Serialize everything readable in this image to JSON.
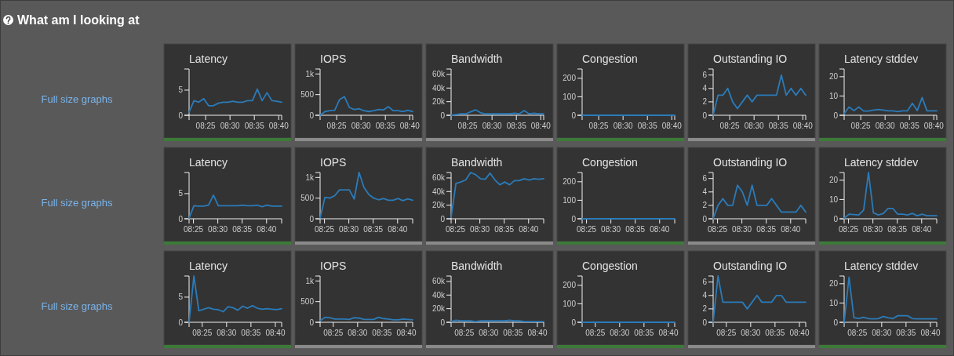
{
  "chart_data": [
    {
      "type": "other",
      "title": "What am I looking at"
    },
    {
      "type": "other",
      "annotations": [
        "Full size graphs"
      ]
    },
    {
      "type": "line",
      "title": "Latency",
      "x": [
        8.36,
        8.3767,
        8.3933,
        8.41,
        8.4267,
        8.4433,
        8.46,
        8.4767,
        8.4933,
        8.51,
        8.5267,
        8.5433,
        8.56,
        8.5767,
        8.5933,
        8.61,
        8.6267,
        8.6433,
        8.66,
        8.6767
      ],
      "values": [
        0.6,
        2.9,
        2.6,
        3.3,
        1.9,
        1.9,
        2.4,
        2.6,
        2.6,
        2.8,
        2.6,
        2.6,
        2.9,
        2.9,
        5.2,
        2.9,
        4.5,
        2.9,
        2.8,
        2.6
      ],
      "color": "#2b7bb9",
      "xlim": [
        8.36,
        8.6767
      ],
      "xticks": [
        {
          "value": 8.4167,
          "label": "08:25"
        },
        {
          "value": 8.5,
          "label": "08:30"
        },
        {
          "value": 8.5833,
          "label": "08:35"
        },
        {
          "value": 8.6667,
          "label": "08:40"
        }
      ],
      "ylim": [
        0,
        9.2
      ],
      "yticks": [
        0,
        5
      ]
    },
    {
      "type": "line",
      "title": "IOPS",
      "x": [
        8.36,
        8.3767,
        8.3933,
        8.41,
        8.4267,
        8.4433,
        8.46,
        8.4767,
        8.4933,
        8.51,
        8.5267,
        8.5433,
        8.56,
        8.5767,
        8.5933,
        8.61,
        8.6267,
        8.6433,
        8.66,
        8.6767
      ],
      "values": [
        0,
        90,
        110,
        120,
        380,
        450,
        190,
        140,
        160,
        110,
        90,
        110,
        140,
        130,
        210,
        110,
        110,
        90,
        120,
        90
      ],
      "color": "#2b7bb9",
      "xlim": [
        8.36,
        8.6767
      ],
      "xticks": [
        {
          "value": 8.4167,
          "label": "08:25"
        },
        {
          "value": 8.5,
          "label": "08:30"
        },
        {
          "value": 8.5833,
          "label": "08:35"
        },
        {
          "value": 8.6667,
          "label": "08:40"
        }
      ],
      "ylim": [
        0,
        1120
      ],
      "yticks": [
        0,
        500,
        {
          "value": 1000,
          "label": "1k"
        }
      ]
    },
    {
      "type": "line",
      "title": "Bandwidth",
      "x": [
        8.36,
        8.3767,
        8.3933,
        8.41,
        8.4267,
        8.4433,
        8.46,
        8.4767,
        8.4933,
        8.51,
        8.5267,
        8.5433,
        8.56,
        8.5767,
        8.5933,
        8.61,
        8.6267,
        8.6433,
        8.66,
        8.6767
      ],
      "values": [
        0,
        1000,
        2000,
        2000,
        5000,
        8000,
        4000,
        2000,
        2000,
        2000,
        2000,
        2000,
        2000,
        3000,
        2000,
        7000,
        2000,
        3000,
        2000,
        2000
      ],
      "color": "#2b7bb9",
      "xlim": [
        8.36,
        8.6767
      ],
      "xticks": [
        {
          "value": 8.4167,
          "label": "08:25"
        },
        {
          "value": 8.5,
          "label": "08:30"
        },
        {
          "value": 8.5833,
          "label": "08:35"
        },
        {
          "value": 8.6667,
          "label": "08:40"
        }
      ],
      "ylim": [
        0,
        68000
      ],
      "yticks": [
        0,
        {
          "value": 20000,
          "label": "20k"
        },
        {
          "value": 40000,
          "label": "40k"
        },
        {
          "value": 60000,
          "label": "60k"
        }
      ]
    },
    {
      "type": "line",
      "title": "Congestion",
      "x": [
        8.36,
        8.3767,
        8.3933,
        8.41,
        8.4267,
        8.4433,
        8.46,
        8.4767,
        8.4933,
        8.51,
        8.5267,
        8.5433,
        8.56,
        8.5767,
        8.5933,
        8.61,
        8.6267,
        8.6433,
        8.66,
        8.6767
      ],
      "values": [
        0,
        0,
        0,
        0,
        0,
        0,
        0,
        0,
        0,
        0,
        0,
        0,
        0,
        0,
        0,
        0,
        0,
        0,
        0,
        0
      ],
      "color": "#2b7bb9",
      "xlim": [
        8.36,
        8.6767
      ],
      "xticks": [
        {
          "value": 8.4167,
          "label": "08:25"
        },
        {
          "value": 8.5,
          "label": "08:30"
        },
        {
          "value": 8.5833,
          "label": "08:35"
        },
        {
          "value": 8.6667,
          "label": "08:40"
        }
      ],
      "ylim": [
        0,
        250
      ],
      "yticks": [
        0,
        100,
        200
      ]
    },
    {
      "type": "line",
      "title": "Outstanding IO",
      "x": [
        8.36,
        8.3767,
        8.3933,
        8.41,
        8.4267,
        8.4433,
        8.46,
        8.4767,
        8.4933,
        8.51,
        8.5267,
        8.5433,
        8.56,
        8.5767,
        8.5933,
        8.61,
        8.6267,
        8.6433,
        8.66,
        8.6767
      ],
      "values": [
        0,
        3,
        3,
        4,
        2,
        1,
        2,
        3,
        2,
        3,
        3,
        3,
        3,
        3,
        6,
        3,
        4,
        3,
        4,
        3
      ],
      "color": "#2b7bb9",
      "xlim": [
        8.36,
        8.6767
      ],
      "xticks": [
        {
          "value": 8.4167,
          "label": "08:25"
        },
        {
          "value": 8.5,
          "label": "08:30"
        },
        {
          "value": 8.5833,
          "label": "08:35"
        },
        {
          "value": 8.6667,
          "label": "08:40"
        }
      ],
      "ylim": [
        0,
        6.9
      ],
      "yticks": [
        0,
        2,
        4,
        6
      ]
    },
    {
      "type": "line",
      "title": "Latency stddev",
      "x": [
        8.36,
        8.3767,
        8.3933,
        8.41,
        8.4267,
        8.4433,
        8.46,
        8.4767,
        8.4933,
        8.51,
        8.5267,
        8.5433,
        8.56,
        8.5767,
        8.5933,
        8.61,
        8.6267,
        8.6433,
        8.66,
        8.6767
      ],
      "values": [
        0.8,
        4.3,
        2.4,
        4.3,
        2.2,
        2.2,
        2.7,
        3.0,
        2.7,
        2.3,
        2.3,
        1.9,
        2.3,
        2.3,
        6.2,
        2.4,
        9.2,
        2.3,
        2.3,
        2.3
      ],
      "color": "#2b7bb9",
      "xlim": [
        8.36,
        8.6767
      ],
      "xticks": [
        {
          "value": 8.4167,
          "label": "08:25"
        },
        {
          "value": 8.5,
          "label": "08:30"
        },
        {
          "value": 8.5833,
          "label": "08:35"
        },
        {
          "value": 8.6667,
          "label": "08:40"
        }
      ],
      "ylim": [
        0,
        24
      ],
      "yticks": [
        0,
        10,
        20
      ]
    },
    {
      "type": "other",
      "annotations": [
        "Full size graphs"
      ]
    },
    {
      "type": "line",
      "title": "Latency",
      "x": [
        8.4017,
        8.4183,
        8.435,
        8.4517,
        8.4683,
        8.485,
        8.5017,
        8.5183,
        8.535,
        8.5517,
        8.5683,
        8.585,
        8.6017,
        8.6183,
        8.635,
        8.6517,
        8.6683,
        8.685,
        8.7017,
        8.7183
      ],
      "values": [
        0.1,
        2.6,
        2.5,
        2.5,
        2.7,
        4.7,
        2.6,
        2.6,
        2.6,
        2.6,
        2.6,
        2.7,
        2.6,
        2.6,
        2.7,
        2.4,
        2.7,
        2.5,
        2.5,
        2.5
      ],
      "color": "#2b7bb9",
      "xlim": [
        8.4017,
        8.7183
      ],
      "xticks": [
        {
          "value": 8.4167,
          "label": "08:25"
        },
        {
          "value": 8.5,
          "label": "08:30"
        },
        {
          "value": 8.5833,
          "label": "08:35"
        },
        {
          "value": 8.6667,
          "label": "08:40"
        }
      ],
      "ylim": [
        0,
        9.2
      ],
      "yticks": [
        0,
        5
      ]
    },
    {
      "type": "line",
      "title": "IOPS",
      "x": [
        8.4017,
        8.4183,
        8.435,
        8.4517,
        8.4683,
        8.485,
        8.5017,
        8.5183,
        8.535,
        8.5517,
        8.5683,
        8.585,
        8.6017,
        8.6183,
        8.635,
        8.6517,
        8.6683,
        8.685,
        8.7017,
        8.7183
      ],
      "values": [
        20,
        520,
        500,
        560,
        700,
        700,
        700,
        480,
        1120,
        760,
        590,
        500,
        460,
        490,
        450,
        450,
        490,
        440,
        480,
        450
      ],
      "color": "#2b7bb9",
      "xlim": [
        8.4017,
        8.7183
      ],
      "xticks": [
        {
          "value": 8.4167,
          "label": "08:25"
        },
        {
          "value": 8.5,
          "label": "08:30"
        },
        {
          "value": 8.5833,
          "label": "08:35"
        },
        {
          "value": 8.6667,
          "label": "08:40"
        }
      ],
      "ylim": [
        0,
        1120
      ],
      "yticks": [
        0,
        500,
        {
          "value": 1000,
          "label": "1k"
        }
      ]
    },
    {
      "type": "line",
      "title": "Bandwidth",
      "x": [
        8.4017,
        8.4183,
        8.435,
        8.4517,
        8.4683,
        8.485,
        8.5017,
        8.5183,
        8.535,
        8.5517,
        8.5683,
        8.585,
        8.6017,
        8.6183,
        8.635,
        8.6517,
        8.6683,
        8.685,
        8.7017,
        8.7183
      ],
      "values": [
        2000,
        52000,
        54000,
        57000,
        68000,
        65000,
        59000,
        58000,
        67000,
        57000,
        50000,
        54000,
        50000,
        56000,
        56000,
        59000,
        57000,
        59000,
        58000,
        59000
      ],
      "color": "#2b7bb9",
      "xlim": [
        8.4017,
        8.7183
      ],
      "xticks": [
        {
          "value": 8.4167,
          "label": "08:25"
        },
        {
          "value": 8.5,
          "label": "08:30"
        },
        {
          "value": 8.5833,
          "label": "08:35"
        },
        {
          "value": 8.6667,
          "label": "08:40"
        }
      ],
      "ylim": [
        0,
        68000
      ],
      "yticks": [
        0,
        {
          "value": 20000,
          "label": "20k"
        },
        {
          "value": 40000,
          "label": "40k"
        },
        {
          "value": 60000,
          "label": "60k"
        }
      ]
    },
    {
      "type": "line",
      "title": "Congestion",
      "x": [
        8.4017,
        8.4183,
        8.435,
        8.4517,
        8.4683,
        8.485,
        8.5017,
        8.5183,
        8.535,
        8.5517,
        8.5683,
        8.585,
        8.6017,
        8.6183,
        8.635,
        8.6517,
        8.6683,
        8.685,
        8.7017,
        8.7183
      ],
      "values": [
        0,
        0,
        0,
        0,
        0,
        0,
        0,
        0,
        0,
        0,
        0,
        0,
        0,
        0,
        0,
        0,
        0,
        0,
        0,
        0
      ],
      "color": "#2b7bb9",
      "xlim": [
        8.4017,
        8.7183
      ],
      "xticks": [
        {
          "value": 8.4167,
          "label": "08:25"
        },
        {
          "value": 8.5,
          "label": "08:30"
        },
        {
          "value": 8.5833,
          "label": "08:35"
        },
        {
          "value": 8.6667,
          "label": "08:40"
        }
      ],
      "ylim": [
        0,
        250
      ],
      "yticks": [
        0,
        100,
        200
      ]
    },
    {
      "type": "line",
      "title": "Outstanding IO",
      "x": [
        8.4017,
        8.4183,
        8.435,
        8.4517,
        8.4683,
        8.485,
        8.5017,
        8.5183,
        8.535,
        8.5517,
        8.5683,
        8.585,
        8.6017,
        8.6183,
        8.635,
        8.6517,
        8.6683,
        8.685,
        8.7017,
        8.7183
      ],
      "values": [
        0,
        2,
        3,
        2,
        2,
        5,
        4,
        2,
        5,
        2,
        2,
        2,
        3,
        2,
        1,
        1,
        1,
        1,
        2,
        1
      ],
      "color": "#2b7bb9",
      "xlim": [
        8.4017,
        8.7183
      ],
      "xticks": [
        {
          "value": 8.4167,
          "label": "08:25"
        },
        {
          "value": 8.5,
          "label": "08:30"
        },
        {
          "value": 8.5833,
          "label": "08:35"
        },
        {
          "value": 8.6667,
          "label": "08:40"
        }
      ],
      "ylim": [
        0,
        6.9
      ],
      "yticks": [
        0,
        2,
        4,
        6
      ]
    },
    {
      "type": "line",
      "title": "Latency stddev",
      "x": [
        8.4017,
        8.4183,
        8.435,
        8.4517,
        8.4683,
        8.485,
        8.5017,
        8.5183,
        8.535,
        8.5517,
        8.5683,
        8.585,
        8.6017,
        8.6183,
        8.635,
        8.6517,
        8.6683,
        8.685,
        8.7017,
        8.7183
      ],
      "values": [
        0.3,
        2.4,
        2.2,
        2.0,
        4.5,
        24,
        3.1,
        2.0,
        2.7,
        5.3,
        5.3,
        2.4,
        2.4,
        2.0,
        2.8,
        1.6,
        2.4,
        1.6,
        1.6,
        1.6
      ],
      "color": "#2b7bb9",
      "xlim": [
        8.4017,
        8.7183
      ],
      "xticks": [
        {
          "value": 8.4167,
          "label": "08:25"
        },
        {
          "value": 8.5,
          "label": "08:30"
        },
        {
          "value": 8.5833,
          "label": "08:35"
        },
        {
          "value": 8.6667,
          "label": "08:40"
        }
      ],
      "ylim": [
        0,
        24
      ],
      "yticks": [
        0,
        10,
        20
      ]
    },
    {
      "type": "other",
      "annotations": [
        "Full size graphs"
      ]
    },
    {
      "type": "line",
      "title": "Latency",
      "x": [
        8.3717,
        8.3883,
        8.405,
        8.4217,
        8.4383,
        8.455,
        8.4717,
        8.4883,
        8.505,
        8.5217,
        8.5383,
        8.555,
        8.5717,
        8.5883,
        8.605,
        8.6217,
        8.6383,
        8.655,
        8.6717,
        8.6883
      ],
      "values": [
        0,
        9.2,
        2.3,
        2.6,
        2.9,
        2.6,
        2.5,
        2.1,
        3.1,
        2.9,
        2.4,
        3.2,
        2.8,
        3.3,
        2.8,
        2.6,
        2.7,
        2.6,
        2.5,
        2.7
      ],
      "color": "#2b7bb9",
      "xlim": [
        8.3717,
        8.6883
      ],
      "xticks": [
        {
          "value": 8.4167,
          "label": "08:25"
        },
        {
          "value": 8.5,
          "label": "08:30"
        },
        {
          "value": 8.5833,
          "label": "08:35"
        },
        {
          "value": 8.6667,
          "label": "08:40"
        }
      ],
      "ylim": [
        0,
        9.2
      ],
      "yticks": [
        0,
        5
      ]
    },
    {
      "type": "line",
      "title": "IOPS",
      "x": [
        8.3717,
        8.3883,
        8.405,
        8.4217,
        8.4383,
        8.455,
        8.4717,
        8.4883,
        8.505,
        8.5217,
        8.5383,
        8.555,
        8.5717,
        8.5883,
        8.605,
        8.6217,
        8.6383,
        8.655,
        8.6717,
        8.6883
      ],
      "values": [
        40,
        120,
        110,
        80,
        80,
        80,
        70,
        110,
        100,
        70,
        70,
        70,
        120,
        90,
        80,
        60,
        60,
        80,
        70,
        60
      ],
      "color": "#2b7bb9",
      "xlim": [
        8.3717,
        8.6883
      ],
      "xticks": [
        {
          "value": 8.4167,
          "label": "08:25"
        },
        {
          "value": 8.5,
          "label": "08:30"
        },
        {
          "value": 8.5833,
          "label": "08:35"
        },
        {
          "value": 8.6667,
          "label": "08:40"
        }
      ],
      "ylim": [
        0,
        1120
      ],
      "yticks": [
        0,
        500,
        {
          "value": 1000,
          "label": "1k"
        }
      ]
    },
    {
      "type": "line",
      "title": "Bandwidth",
      "x": [
        8.3717,
        8.3883,
        8.405,
        8.4217,
        8.4383,
        8.455,
        8.4717,
        8.4883,
        8.505,
        8.5217,
        8.5383,
        8.555,
        8.5717,
        8.5883,
        8.605,
        8.6217,
        8.6383,
        8.655,
        8.6717,
        8.6883
      ],
      "values": [
        1000,
        3000,
        2000,
        2000,
        2000,
        1000,
        2000,
        2000,
        2000,
        2000,
        2000,
        2000,
        3000,
        2000,
        2000,
        1000,
        1000,
        1000,
        1000,
        1000
      ],
      "color": "#2b7bb9",
      "xlim": [
        8.3717,
        8.6883
      ],
      "xticks": [
        {
          "value": 8.4167,
          "label": "08:25"
        },
        {
          "value": 8.5,
          "label": "08:30"
        },
        {
          "value": 8.5833,
          "label": "08:35"
        },
        {
          "value": 8.6667,
          "label": "08:40"
        }
      ],
      "ylim": [
        0,
        68000
      ],
      "yticks": [
        0,
        {
          "value": 20000,
          "label": "20k"
        },
        {
          "value": 40000,
          "label": "40k"
        },
        {
          "value": 60000,
          "label": "60k"
        }
      ]
    },
    {
      "type": "line",
      "title": "Congestion",
      "x": [
        8.3717,
        8.3883,
        8.405,
        8.4217,
        8.4383,
        8.455,
        8.4717,
        8.4883,
        8.505,
        8.5217,
        8.5383,
        8.555,
        8.5717,
        8.5883,
        8.605,
        8.6217,
        8.6383,
        8.655,
        8.6717,
        8.6883
      ],
      "values": [
        0,
        0,
        0,
        0,
        0,
        0,
        0,
        0,
        0,
        0,
        0,
        0,
        0,
        0,
        0,
        0,
        0,
        0,
        0,
        0
      ],
      "color": "#2b7bb9",
      "xlim": [
        8.3717,
        8.6883
      ],
      "xticks": [
        {
          "value": 8.4167,
          "label": "08:25"
        },
        {
          "value": 8.5,
          "label": "08:30"
        },
        {
          "value": 8.5833,
          "label": "08:35"
        },
        {
          "value": 8.6667,
          "label": "08:40"
        }
      ],
      "ylim": [
        0,
        250
      ],
      "yticks": [
        0,
        100,
        200
      ]
    },
    {
      "type": "line",
      "title": "Outstanding IO",
      "x": [
        8.3717,
        8.3883,
        8.405,
        8.4217,
        8.4383,
        8.455,
        8.4717,
        8.4883,
        8.505,
        8.5217,
        8.5383,
        8.555,
        8.5717,
        8.5883,
        8.605,
        8.6217,
        8.6383,
        8.655,
        8.6717,
        8.6883
      ],
      "values": [
        0,
        6.9,
        3,
        3,
        3,
        3,
        3,
        2,
        3,
        4,
        3,
        3,
        3,
        4,
        4,
        3,
        3,
        3,
        3,
        3
      ],
      "color": "#2b7bb9",
      "xlim": [
        8.3717,
        8.6883
      ],
      "xticks": [
        {
          "value": 8.4167,
          "label": "08:25"
        },
        {
          "value": 8.5,
          "label": "08:30"
        },
        {
          "value": 8.5833,
          "label": "08:35"
        },
        {
          "value": 8.6667,
          "label": "08:40"
        }
      ],
      "ylim": [
        0,
        6.9
      ],
      "yticks": [
        0,
        2,
        4,
        6
      ]
    },
    {
      "type": "line",
      "title": "Latency stddev",
      "x": [
        8.3717,
        8.3883,
        8.405,
        8.4217,
        8.4383,
        8.455,
        8.4717,
        8.4883,
        8.505,
        8.5217,
        8.5383,
        8.555,
        8.5717,
        8.5883,
        8.605,
        8.6217,
        8.6383,
        8.655,
        8.6717,
        8.6883
      ],
      "values": [
        0,
        23.4,
        2.4,
        2.0,
        2.6,
        1.9,
        1.8,
        1.9,
        3.0,
        2.4,
        1.9,
        3.4,
        3.4,
        3.4,
        1.9,
        1.8,
        1.8,
        1.8,
        1.8,
        1.8
      ],
      "color": "#2b7bb9",
      "xlim": [
        8.3717,
        8.6883
      ],
      "xticks": [
        {
          "value": 8.4167,
          "label": "08:25"
        },
        {
          "value": 8.5,
          "label": "08:30"
        },
        {
          "value": 8.5833,
          "label": "08:35"
        },
        {
          "value": 8.6667,
          "label": "08:40"
        }
      ],
      "ylim": [
        0,
        24
      ],
      "yticks": [
        0,
        10,
        20
      ]
    }
  ]
}
